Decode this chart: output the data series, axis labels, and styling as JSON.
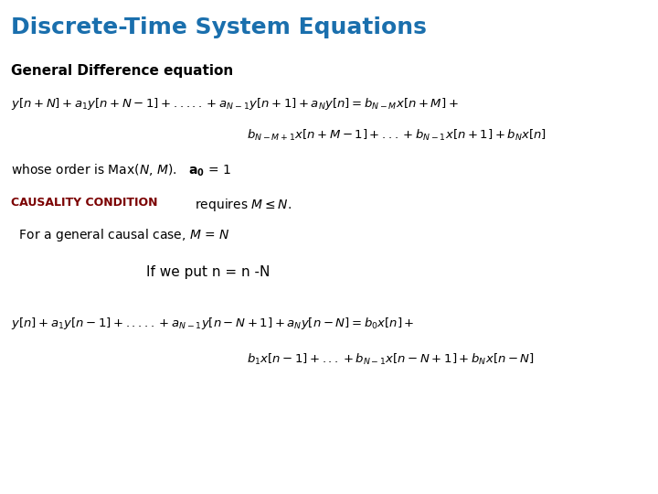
{
  "title": "Discrete-Time System Equations",
  "title_color": "#1a6fad",
  "title_fontsize": 18,
  "bg_color": "#ffffff",
  "subtitle": "General Difference equation",
  "subtitle_fontsize": 11,
  "eq_fontsize": 9.5,
  "order_fontsize": 10,
  "causality_fontsize": 9,
  "causal_case_fontsize": 10,
  "if_fontsize": 11
}
